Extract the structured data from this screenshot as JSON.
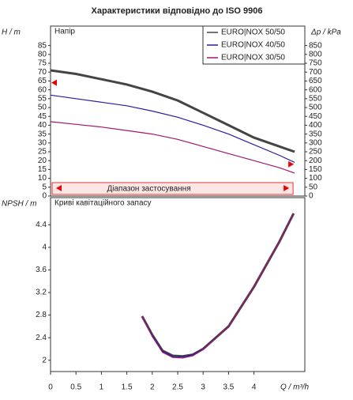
{
  "chart_data": [
    {
      "type": "line",
      "title": "Характеристики відповідно до ISO 9906",
      "ylabel": "H / m",
      "y2label": "Δp / kPa",
      "label": "Напір",
      "range_label": "Діапазон застосування",
      "application_range": [
        0,
        4.8
      ],
      "limit_markers": [
        {
          "x": 0,
          "y": 64
        },
        {
          "x": 4.8,
          "y": 18
        }
      ],
      "x": [
        0,
        0.5,
        1,
        1.5,
        2,
        2.5,
        3,
        3.5,
        4,
        4.5,
        4.8
      ],
      "series": [
        {
          "name": "EURO|NOX 50/50",
          "color": "#444444",
          "values": [
            71,
            69,
            66,
            63,
            59,
            54,
            47,
            40,
            33,
            28,
            25
          ]
        },
        {
          "name": "EURO|NOX 40/50",
          "color": "#2e1a9e",
          "values": [
            57,
            55,
            53,
            51,
            48,
            44.5,
            40,
            35,
            29,
            23,
            19
          ]
        },
        {
          "name": "EURO|NOX 30/50",
          "color": "#a0186e",
          "values": [
            42,
            40.5,
            39,
            37,
            35,
            32,
            28,
            24,
            20,
            16,
            13
          ]
        }
      ],
      "xlim": [
        0,
        5
      ],
      "ylim": [
        0,
        96
      ],
      "yticks": [
        0,
        5,
        10,
        15,
        20,
        25,
        30,
        35,
        40,
        45,
        50,
        55,
        60,
        65,
        70,
        75,
        80,
        85
      ],
      "y2lim": [
        0,
        960
      ],
      "y2ticks": [
        0,
        50,
        100,
        150,
        200,
        250,
        300,
        350,
        400,
        450,
        500,
        550,
        600,
        650,
        700,
        750,
        800,
        850
      ]
    },
    {
      "type": "line",
      "ylabel": "NPSH / m",
      "xlabel": "Q / m³/h",
      "label": "Криві кавітаційного запасу",
      "x": [
        1.8,
        2,
        2.2,
        2.4,
        2.6,
        2.8,
        3,
        3.5,
        4,
        4.5,
        4.78
      ],
      "series": [
        {
          "name": "EURO|NOX 50/50",
          "color": "#444444",
          "values": [
            2.78,
            2.45,
            2.17,
            2.08,
            2.07,
            2.1,
            2.2,
            2.6,
            3.3,
            4.1,
            4.6
          ]
        },
        {
          "name": "EURO|NOX 40/50",
          "color": "#2e1a9e",
          "values": [
            2.78,
            2.44,
            2.16,
            2.07,
            2.06,
            2.1,
            2.2,
            2.6,
            3.3,
            4.1,
            4.6
          ]
        },
        {
          "name": "EURO|NOX 30/50",
          "color": "#a0186e",
          "values": [
            2.78,
            2.42,
            2.14,
            2.05,
            2.04,
            2.08,
            2.19,
            2.6,
            3.3,
            4.1,
            4.6
          ]
        }
      ],
      "xlim": [
        0,
        5
      ],
      "xticks": [
        0,
        0.5,
        1,
        1.5,
        2,
        2.5,
        3,
        3.5,
        4
      ],
      "ylim": [
        1.8,
        4.88
      ],
      "yticks": [
        2,
        2.4,
        2.8,
        3.2,
        3.6,
        4,
        4.4
      ]
    }
  ]
}
